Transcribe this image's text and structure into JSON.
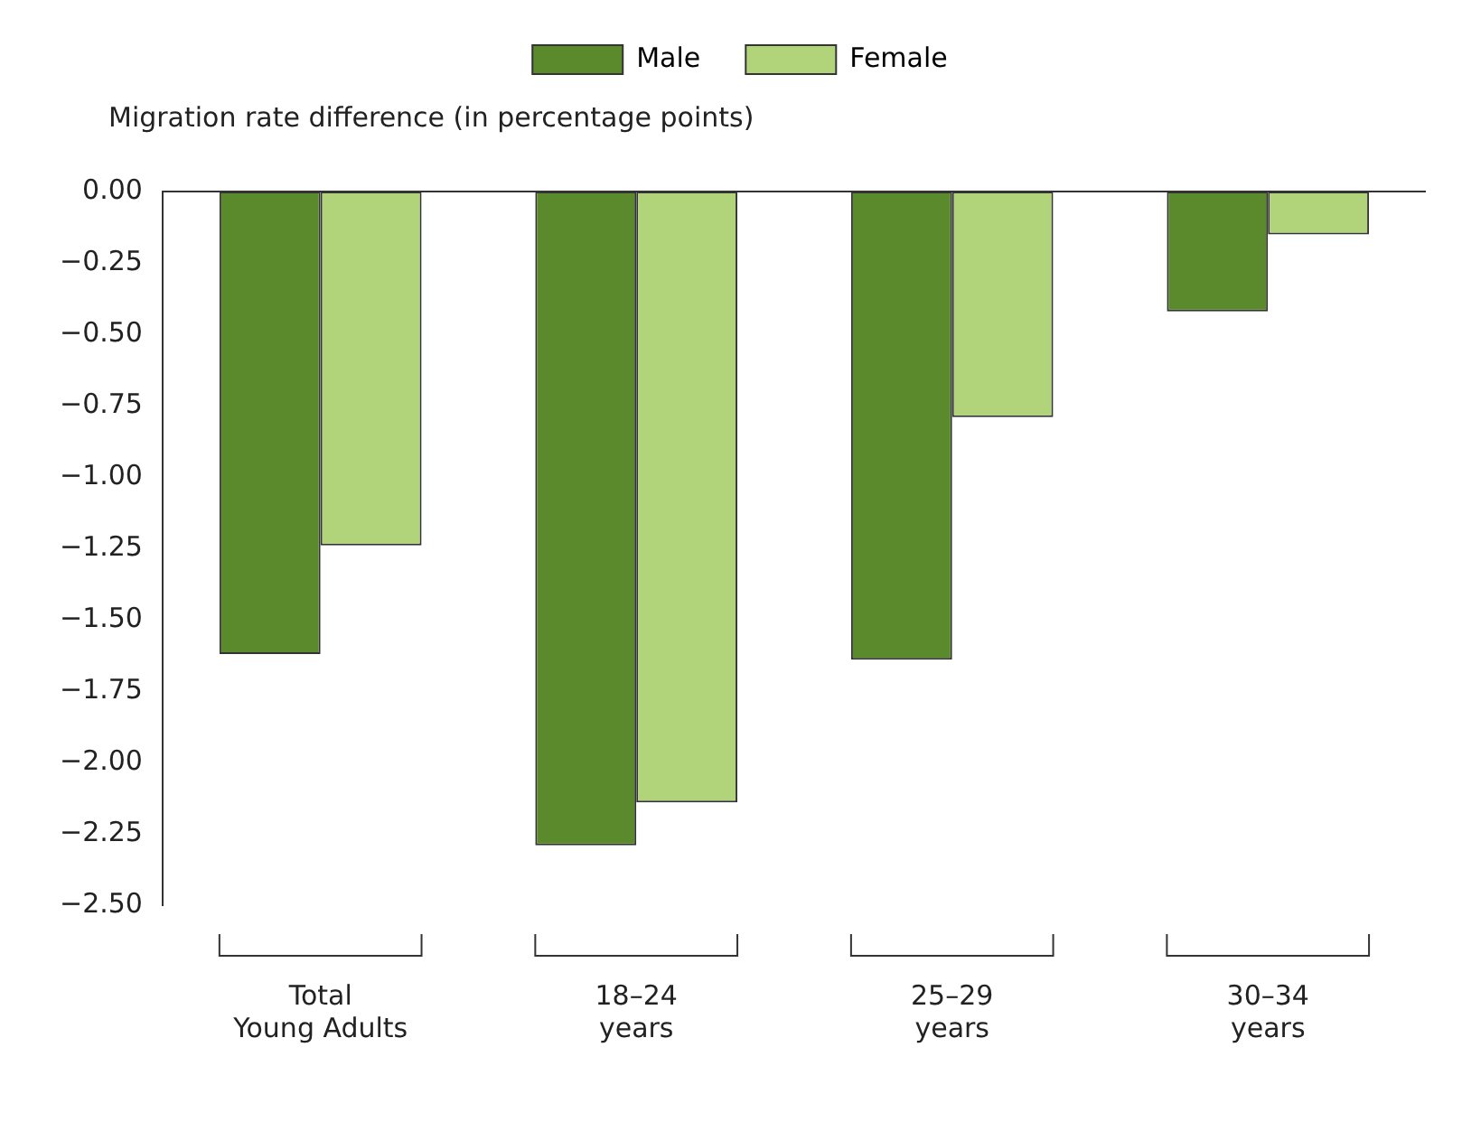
{
  "chart_data": {
    "type": "bar",
    "ylabel": "Migration rate difference (in percentage points)",
    "categories": [
      "Total\nYoung Adults",
      "18–24\nyears",
      "25–29\nyears",
      "30–34\nyears"
    ],
    "series": [
      {
        "name": "Male",
        "color": "#5a8a2b",
        "values": [
          -1.62,
          -2.29,
          -1.64,
          -0.42
        ]
      },
      {
        "name": "Female",
        "color": "#b1d47a",
        "values": [
          -1.24,
          -2.14,
          -0.79,
          -0.15
        ]
      }
    ],
    "ylim": [
      -2.5,
      0
    ],
    "yticks": [
      {
        "value": 0,
        "label": "0.00"
      },
      {
        "value": -0.25,
        "label": "−0.25"
      },
      {
        "value": -0.5,
        "label": "−0.50"
      },
      {
        "value": -0.75,
        "label": "−0.75"
      },
      {
        "value": -1,
        "label": "−1.00"
      },
      {
        "value": -1.25,
        "label": "−1.25"
      },
      {
        "value": -1.5,
        "label": "−1.50"
      },
      {
        "value": -1.75,
        "label": "−1.75"
      },
      {
        "value": -2,
        "label": "−2.00"
      },
      {
        "value": -2.25,
        "label": "−2.25"
      },
      {
        "value": -2.5,
        "label": "−2.50"
      }
    ],
    "grid": false,
    "legend": "top"
  }
}
